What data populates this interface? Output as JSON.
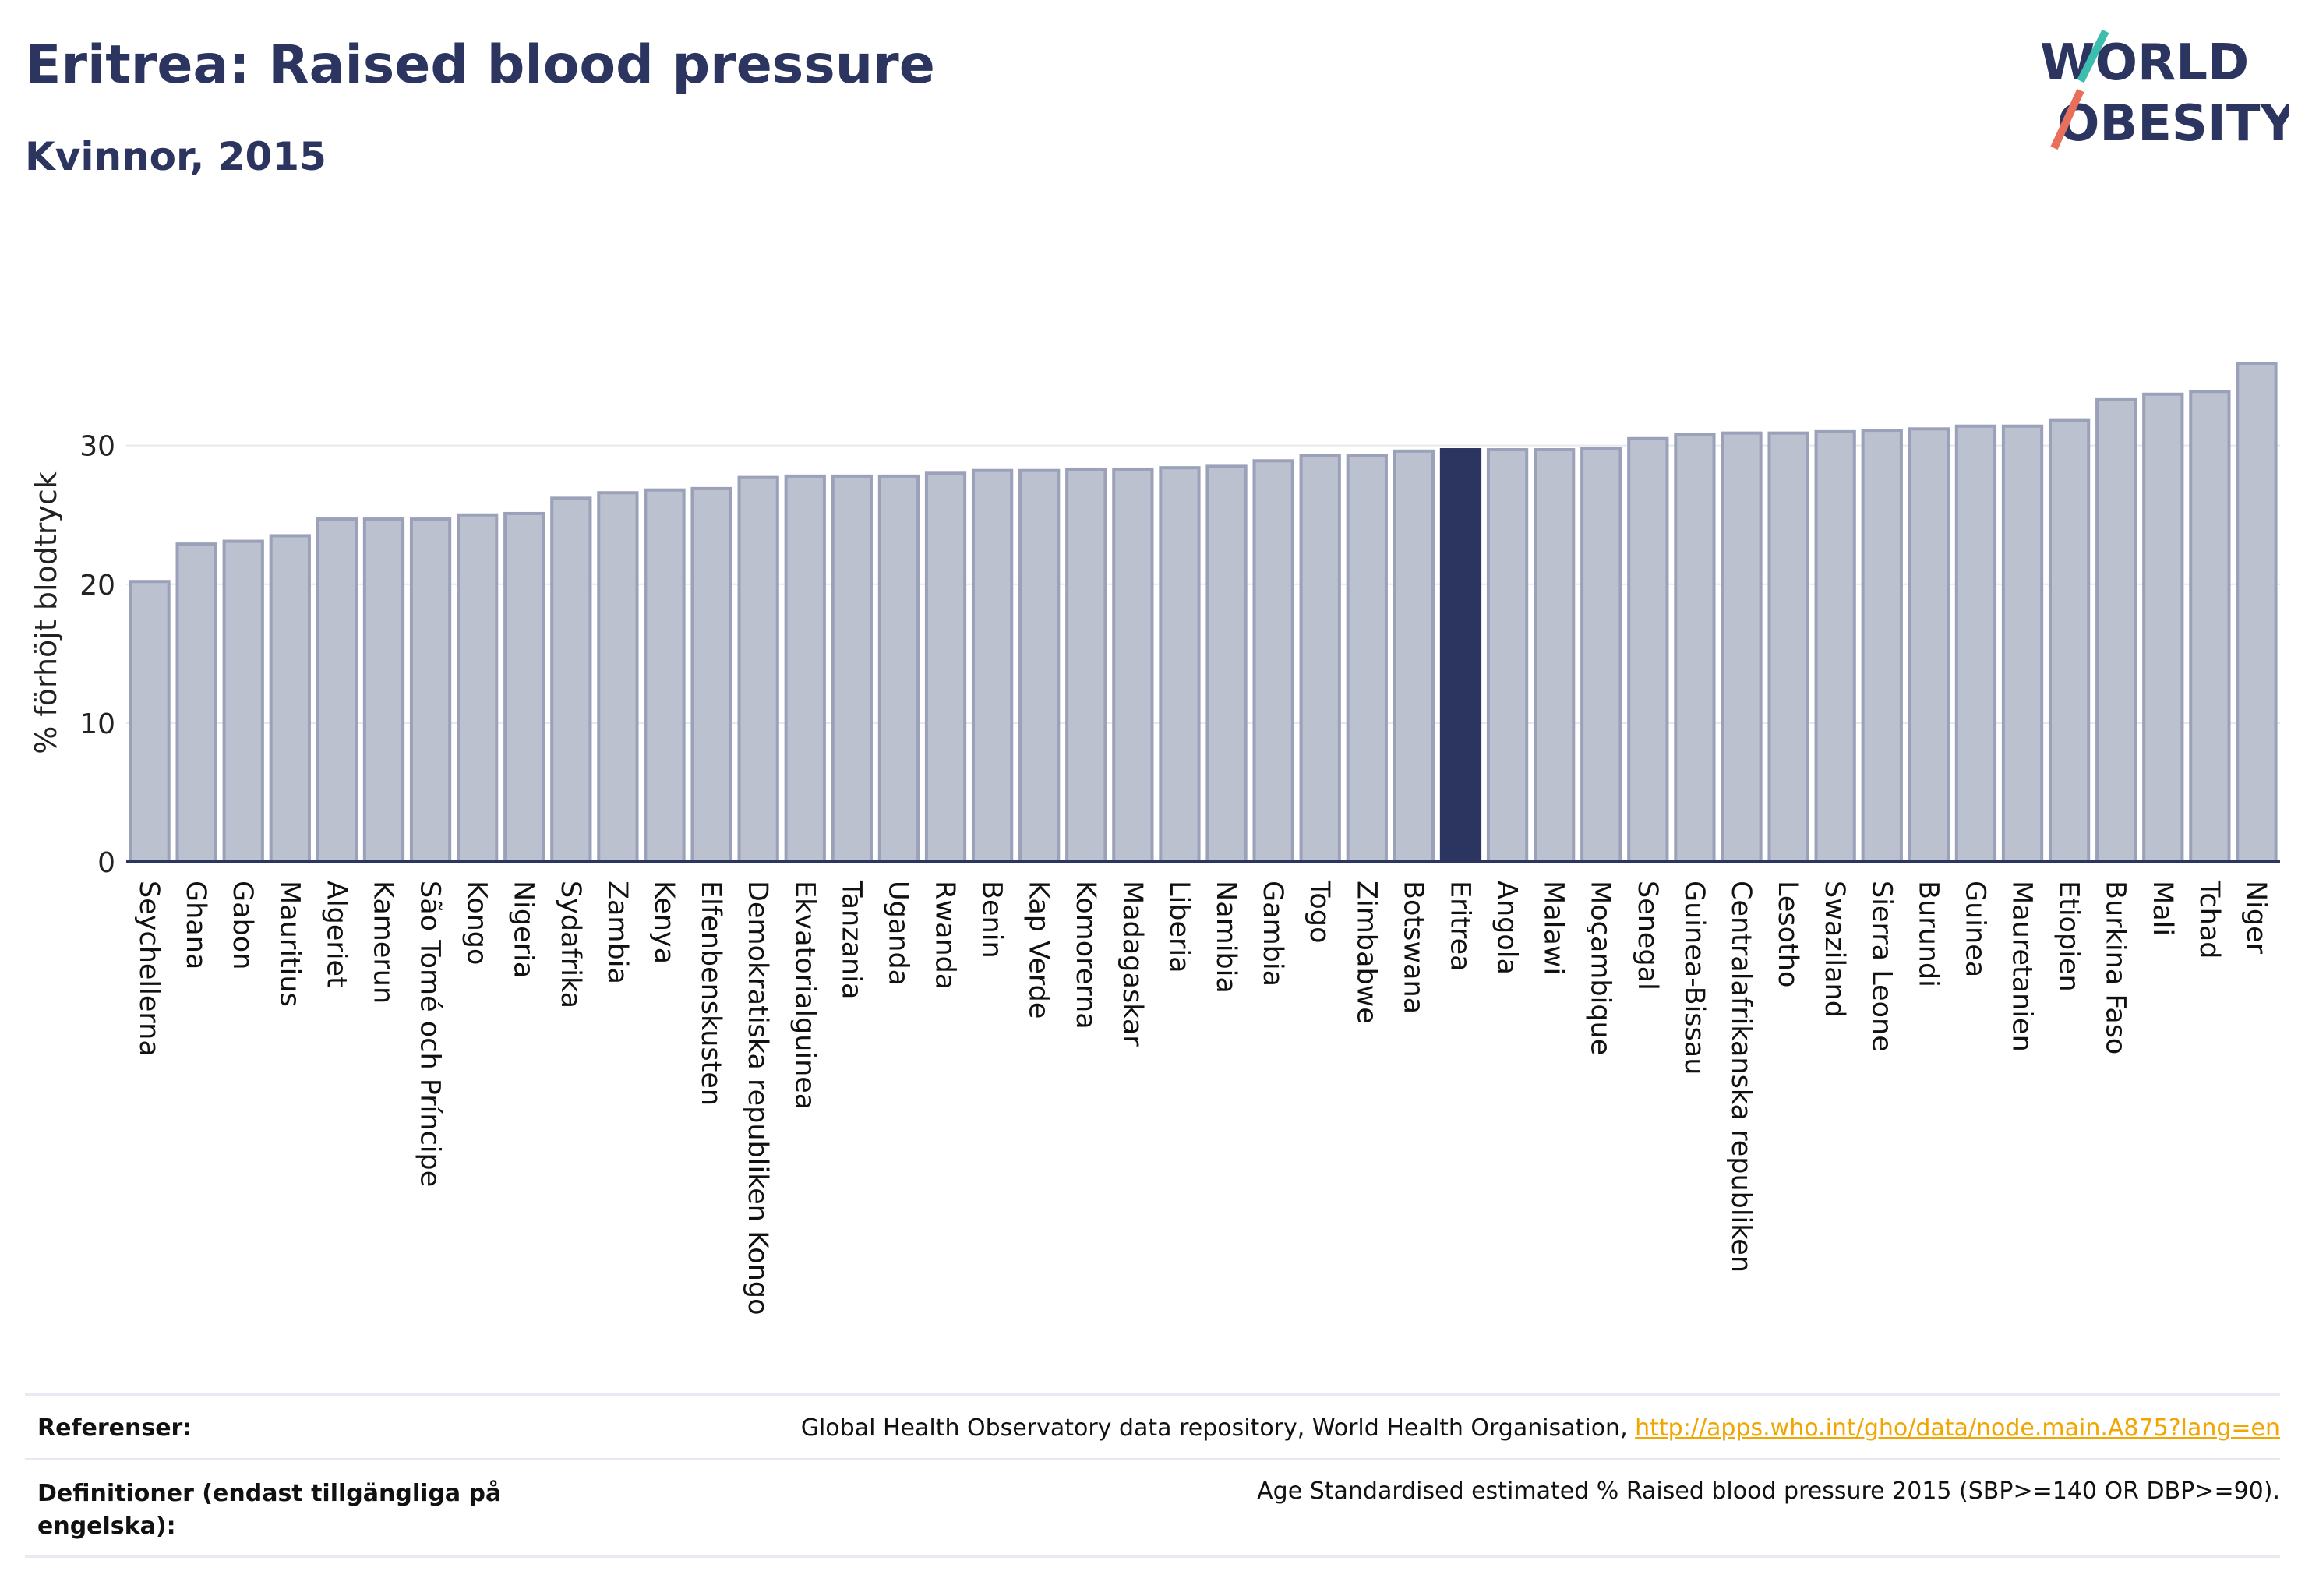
{
  "title": "Eritrea: Raised blood pressure",
  "subtitle": "Kvinnor, 2015",
  "logo": {
    "line1": "WORLD",
    "line2": "OBESITY"
  },
  "colors": {
    "bar": "#bcc1cf",
    "bar_edge": "#9aa1b8",
    "highlight": "#2b3560",
    "grid": "#e6e8ef",
    "axis": "#2b3560",
    "link": "#f0a500"
  },
  "chart_data": {
    "type": "bar",
    "ylabel": "% förhöjt blodtryck",
    "xlabel": "",
    "ylim": [
      0,
      37
    ],
    "yticks": [
      0,
      10,
      20,
      30
    ],
    "grid": true,
    "highlight": "Eritrea",
    "categories": [
      "Seychellerna",
      "Ghana",
      "Gabon",
      "Mauritius",
      "Algeriet",
      "Kamerun",
      "São Tomé och Príncipe",
      "Kongo",
      "Nigeria",
      "Sydafrika",
      "Zambia",
      "Kenya",
      "Elfenbenskusten",
      "Demokratiska republiken Kongo",
      "Ekvatorialguinea",
      "Tanzania",
      "Uganda",
      "Rwanda",
      "Benin",
      "Kap Verde",
      "Komorerna",
      "Madagaskar",
      "Liberia",
      "Namibia",
      "Gambia",
      "Togo",
      "Zimbabwe",
      "Botswana",
      "Eritrea",
      "Angola",
      "Malawi",
      "Moçambique",
      "Senegal",
      "Guinea-Bissau",
      "Centralafrikanska republiken",
      "Lesotho",
      "Swaziland",
      "Sierra Leone",
      "Burundi",
      "Guinea",
      "Mauretanien",
      "Etiopien",
      "Burkina Faso",
      "Mali",
      "Tchad",
      "Niger"
    ],
    "values": [
      20.2,
      22.9,
      23.1,
      23.5,
      24.7,
      24.7,
      24.7,
      25.0,
      25.1,
      26.2,
      26.6,
      26.8,
      26.9,
      27.7,
      27.8,
      27.8,
      27.8,
      28.0,
      28.2,
      28.2,
      28.3,
      28.3,
      28.4,
      28.5,
      28.9,
      29.3,
      29.3,
      29.6,
      29.7,
      29.7,
      29.7,
      29.8,
      30.5,
      30.8,
      30.9,
      30.9,
      31.0,
      31.1,
      31.2,
      31.4,
      31.4,
      31.8,
      33.3,
      33.7,
      33.9,
      35.9
    ]
  },
  "references": {
    "ref_label": "Referenser:",
    "ref_text": "Global Health Observatory data repository, World Health Organisation, ",
    "ref_link": "http://apps.who.int/gho/data/node.main.A875?lang=en",
    "def_label_line1": "Definitioner (endast tillgängliga på",
    "def_label_line2": "engelska):",
    "def_text": "Age Standardised estimated % Raised blood pressure 2015 (SBP>=140 OR DBP>=90)."
  }
}
